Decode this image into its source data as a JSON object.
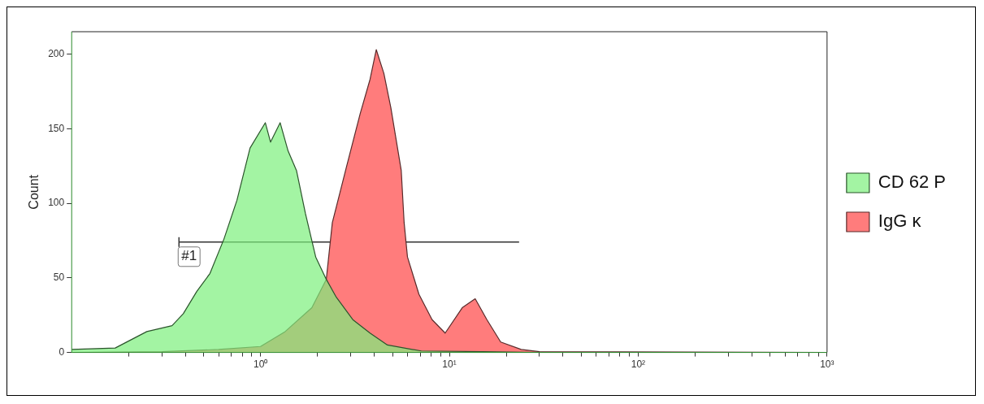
{
  "chart_data": {
    "type": "area",
    "ylabel": "Count",
    "xlim": [
      0.1,
      1000
    ],
    "ylim": [
      0,
      215
    ],
    "log": "x",
    "xticks": [
      {
        "value": 0.2,
        "label": null
      },
      {
        "value": 0.3,
        "label": null
      },
      {
        "value": 0.4,
        "label": null
      },
      {
        "value": 0.5,
        "label": null
      },
      {
        "value": 0.6,
        "label": null
      },
      {
        "value": 0.7,
        "label": null
      },
      {
        "value": 0.8,
        "label": null
      },
      {
        "value": 0.9,
        "label": null
      },
      {
        "value": 1,
        "label": "10⁰"
      },
      {
        "value": 2,
        "label": null
      },
      {
        "value": 3,
        "label": null
      },
      {
        "value": 4,
        "label": null
      },
      {
        "value": 5,
        "label": null
      },
      {
        "value": 6,
        "label": null
      },
      {
        "value": 7,
        "label": null
      },
      {
        "value": 8,
        "label": null
      },
      {
        "value": 9,
        "label": null
      },
      {
        "value": 10,
        "label": "10¹"
      },
      {
        "value": 20,
        "label": null
      },
      {
        "value": 30,
        "label": null
      },
      {
        "value": 40,
        "label": null
      },
      {
        "value": 50,
        "label": null
      },
      {
        "value": 60,
        "label": null
      },
      {
        "value": 70,
        "label": null
      },
      {
        "value": 80,
        "label": null
      },
      {
        "value": 90,
        "label": null
      },
      {
        "value": 100,
        "label": "10²"
      },
      {
        "value": 200,
        "label": null
      },
      {
        "value": 300,
        "label": null
      },
      {
        "value": 400,
        "label": null
      },
      {
        "value": 500,
        "label": null
      },
      {
        "value": 600,
        "label": null
      },
      {
        "value": 700,
        "label": null
      },
      {
        "value": 800,
        "label": null
      },
      {
        "value": 900,
        "label": null
      },
      {
        "value": 1000,
        "label": "10³"
      }
    ],
    "yticks": [
      0,
      50,
      100,
      150,
      200
    ],
    "legend": "right",
    "grid": false,
    "series": [
      {
        "name": "CD 62 P",
        "color": "#7cf07c",
        "x": [
          0.1,
          0.17,
          0.25,
          0.34,
          0.39,
          0.46,
          0.54,
          0.64,
          0.75,
          0.88,
          1.06,
          1.13,
          1.27,
          1.4,
          1.55,
          1.73,
          1.96,
          2.23,
          2.52,
          3.08,
          3.8,
          4.7,
          7.1,
          15,
          30,
          1000
        ],
        "values": [
          2,
          3,
          14,
          18,
          26,
          41,
          53,
          76,
          102,
          137,
          154,
          141,
          154,
          135,
          122,
          93,
          64,
          49,
          37,
          22,
          13,
          5,
          1,
          0.5,
          0,
          0
        ]
      },
      {
        "name": "IgG κ",
        "color": "#ff7c7c",
        "x": [
          0.1,
          0.3,
          0.6,
          1,
          1.35,
          1.87,
          2.23,
          2.4,
          2.86,
          3.37,
          3.8,
          4.1,
          4.5,
          4.9,
          5.56,
          5.76,
          6,
          6.9,
          8.1,
          9.5,
          11.7,
          13.7,
          15.8,
          18.7,
          24,
          30,
          1000
        ],
        "values": [
          0,
          0.5,
          2,
          4,
          14,
          30,
          49,
          87,
          125,
          160,
          183,
          203,
          187,
          164,
          122,
          87,
          64,
          39,
          22,
          13,
          30,
          36,
          22,
          7,
          2,
          0.5,
          0
        ]
      },
      {
        "type": "line",
        "color": "#333333",
        "x": [
          0.37,
          23.4
        ],
        "values": [
          74,
          74
        ]
      }
    ],
    "annotations": [
      {
        "text": "#1",
        "x": 0.37,
        "y": 74
      }
    ]
  }
}
